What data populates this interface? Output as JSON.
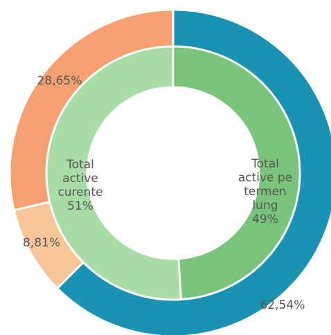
{
  "chart_data": {
    "type": "pie",
    "subtype": "double-donut",
    "title": "",
    "outer_ring": {
      "slices": [
        {
          "label": "62,54%",
          "value": 62.54,
          "color": "#1a93b3"
        },
        {
          "label": "8,81%",
          "value": 8.81,
          "color": "#f8c696"
        },
        {
          "label": "28,65%",
          "value": 28.65,
          "color": "#f5a070"
        }
      ]
    },
    "inner_ring": {
      "slices": [
        {
          "label_lines": [
            "Total",
            "active pe",
            "termen",
            "lung",
            "49%"
          ],
          "value": 49,
          "color": "#78c47b"
        },
        {
          "label_lines": [
            "Total",
            "active",
            "curente",
            "51%"
          ],
          "value": 51,
          "color": "#a9dda6"
        }
      ]
    },
    "label_color": "#555555"
  }
}
